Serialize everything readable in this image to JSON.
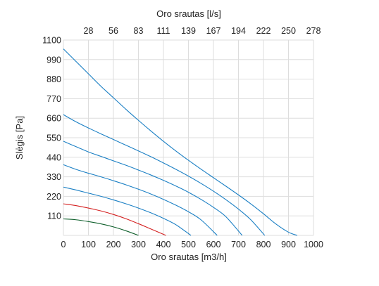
{
  "chart_data": {
    "type": "line",
    "title": "",
    "xlabel": "Oro srautas [m3/h]",
    "ylabel": "Slėgis [Pa]",
    "x2label": "Oro srautas [l/s]",
    "xlim": [
      0,
      1000
    ],
    "ylim": [
      0,
      1100
    ],
    "grid": true,
    "x_ticks": [
      "0",
      "100",
      "200",
      "300",
      "400",
      "500",
      "600",
      "700",
      "800",
      "900",
      "1000"
    ],
    "y_ticks": [
      "110",
      "220",
      "330",
      "440",
      "550",
      "660",
      "770",
      "880",
      "990",
      "1100"
    ],
    "x2_ticks": [
      "28",
      "56",
      "83",
      "111",
      "139",
      "167",
      "194",
      "222",
      "250",
      "278"
    ],
    "colors": {
      "blue": "#1a7fc4",
      "red": "#d42020",
      "green": "#0d5e2a",
      "grid": "#dddddd"
    },
    "series": [
      {
        "color": "#0d5e2a",
        "x": [
          0,
          50,
          100,
          150,
          200,
          250,
          300
        ],
        "y": [
          93,
          88,
          78,
          65,
          48,
          26,
          0
        ]
      },
      {
        "color": "#d42020",
        "x": [
          0,
          50,
          100,
          150,
          200,
          250,
          300,
          350,
          410
        ],
        "y": [
          178,
          168,
          154,
          138,
          118,
          94,
          66,
          36,
          0
        ]
      },
      {
        "color": "#1a7fc4",
        "x": [
          0,
          50,
          100,
          150,
          200,
          250,
          300,
          350,
          400,
          450,
          510
        ],
        "y": [
          272,
          256,
          238,
          220,
          200,
          178,
          154,
          127,
          96,
          60,
          0
        ]
      },
      {
        "color": "#1a7fc4",
        "x": [
          0,
          50,
          100,
          150,
          200,
          250,
          300,
          350,
          400,
          450,
          500,
          550,
          615
        ],
        "y": [
          398,
          372,
          350,
          330,
          308,
          285,
          260,
          233,
          203,
          170,
          133,
          88,
          0
        ]
      },
      {
        "color": "#1a7fc4",
        "x": [
          0,
          50,
          100,
          150,
          200,
          250,
          300,
          350,
          400,
          450,
          500,
          550,
          600,
          650,
          715
        ],
        "y": [
          530,
          500,
          470,
          445,
          420,
          395,
          368,
          340,
          310,
          278,
          243,
          203,
          158,
          105,
          0
        ]
      },
      {
        "color": "#1a7fc4",
        "x": [
          0,
          50,
          100,
          150,
          200,
          250,
          300,
          350,
          400,
          450,
          500,
          550,
          600,
          650,
          700,
          750,
          805
        ],
        "y": [
          680,
          640,
          605,
          572,
          540,
          508,
          476,
          443,
          408,
          372,
          334,
          293,
          249,
          201,
          148,
          87,
          0
        ]
      },
      {
        "color": "#1a7fc4",
        "x": [
          0,
          50,
          100,
          150,
          200,
          250,
          300,
          350,
          400,
          450,
          500,
          550,
          600,
          650,
          700,
          750,
          800,
          850,
          900,
          935
        ],
        "y": [
          1050,
          980,
          910,
          840,
          775,
          710,
          648,
          588,
          530,
          475,
          423,
          373,
          325,
          277,
          228,
          177,
          122,
          64,
          18,
          0
        ]
      }
    ]
  }
}
